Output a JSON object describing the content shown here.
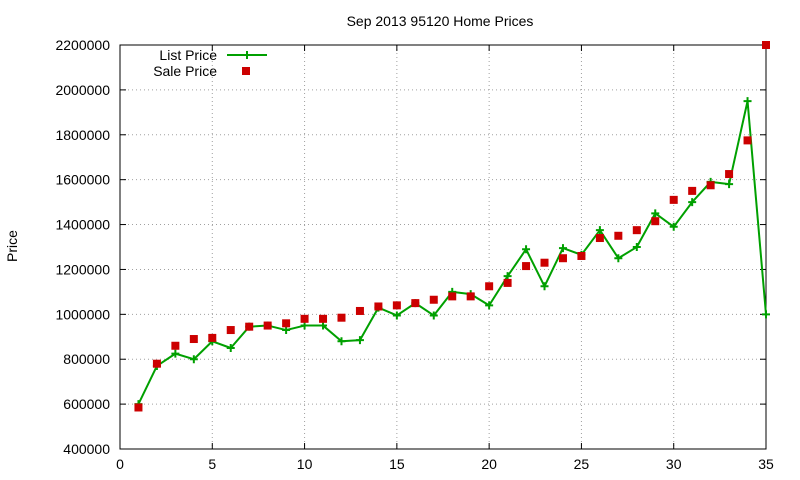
{
  "chart_data": {
    "type": "line",
    "title": "Sep 2013 95120 Home Prices",
    "xlabel": "",
    "ylabel": "Price",
    "xlim": [
      0,
      35
    ],
    "ylim": [
      400000,
      2200000
    ],
    "x_ticks": [
      "0",
      "5",
      "10",
      "15",
      "20",
      "25",
      "30",
      "35"
    ],
    "y_ticks": [
      "400000",
      "600000",
      "800000",
      "1000000",
      "1200000",
      "1400000",
      "1600000",
      "1800000",
      "2000000",
      "2200000"
    ],
    "grid": true,
    "legend_position": "top-left",
    "colors": {
      "list": "#00a000",
      "sale": "#cc0000",
      "grid": "#a0a0a0"
    },
    "series": [
      {
        "name": "List Price",
        "style": "line-with-plus-markers",
        "x": [
          1,
          2,
          3,
          4,
          5,
          6,
          7,
          8,
          9,
          10,
          11,
          12,
          13,
          14,
          15,
          16,
          17,
          18,
          19,
          20,
          21,
          22,
          23,
          24,
          25,
          26,
          27,
          28,
          29,
          30,
          31,
          32,
          33,
          34,
          35
        ],
        "values": [
          600000,
          770000,
          825000,
          800000,
          880000,
          850000,
          945000,
          950000,
          930000,
          950000,
          950000,
          880000,
          885000,
          1030000,
          995000,
          1050000,
          995000,
          1100000,
          1090000,
          1040000,
          1170000,
          1290000,
          1125000,
          1295000,
          1265000,
          1375000,
          1250000,
          1300000,
          1450000,
          1390000,
          1500000,
          1590000,
          1580000,
          1950000,
          1000000
        ]
      },
      {
        "name": "Sale Price",
        "style": "square-markers",
        "x": [
          1,
          2,
          3,
          4,
          5,
          6,
          7,
          8,
          9,
          10,
          11,
          12,
          13,
          14,
          15,
          16,
          17,
          18,
          19,
          20,
          21,
          22,
          23,
          24,
          25,
          26,
          27,
          28,
          29,
          30,
          31,
          32,
          33,
          34,
          35
        ],
        "values": [
          585000,
          780000,
          860000,
          890000,
          895000,
          930000,
          945000,
          950000,
          960000,
          980000,
          980000,
          985000,
          1015000,
          1035000,
          1040000,
          1050000,
          1065000,
          1080000,
          1080000,
          1125000,
          1140000,
          1215000,
          1230000,
          1250000,
          1260000,
          1340000,
          1350000,
          1375000,
          1415000,
          1510000,
          1550000,
          1575000,
          1625000,
          1775000,
          2200000
        ]
      }
    ]
  }
}
